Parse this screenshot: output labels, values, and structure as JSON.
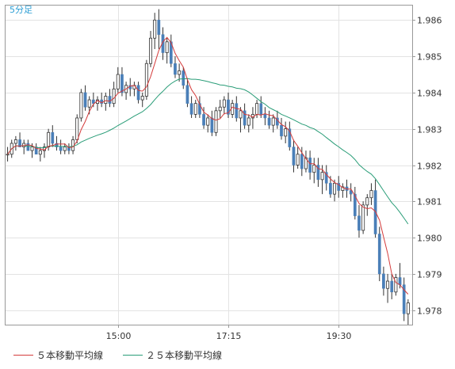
{
  "chart_data": {
    "type": "candlestick",
    "timeframe_label": "5分足",
    "y_axis": {
      "min": 1.9776,
      "max": 1.9864,
      "ticks": [
        "1.986",
        "1.985",
        "1.984",
        "1.983",
        "1.982",
        "1.981",
        "1.980",
        "1.979",
        "1.978"
      ],
      "position": "right"
    },
    "x_axis": {
      "ticks": [
        {
          "label": "15:00",
          "index": 27
        },
        {
          "label": "17:15",
          "index": 54
        },
        {
          "label": "19:30",
          "index": 81
        }
      ]
    },
    "grid": true,
    "legend": {
      "placement": "bottom-left",
      "items": [
        {
          "label": "５本移動平均線",
          "color": "#d43c3c"
        },
        {
          "label": "２５本移動平均線",
          "color": "#2a9d78"
        }
      ]
    },
    "colors": {
      "up": "#ffffff",
      "down": "#4a7fb8",
      "ma5": "#d43c3c",
      "ma25": "#2a9d78",
      "wick": "#333333"
    },
    "candles": [
      [
        1.9823,
        1.9825,
        1.9821,
        1.9823
      ],
      [
        1.9823,
        1.9827,
        1.9822,
        1.9826
      ],
      [
        1.9826,
        1.9828,
        1.9824,
        1.9827
      ],
      [
        1.9827,
        1.9829,
        1.9825,
        1.9825
      ],
      [
        1.9825,
        1.9827,
        1.9823,
        1.9826
      ],
      [
        1.9826,
        1.9827,
        1.9824,
        1.9824
      ],
      [
        1.9824,
        1.9826,
        1.9822,
        1.9825
      ],
      [
        1.9825,
        1.9826,
        1.9823,
        1.9823
      ],
      [
        1.9823,
        1.9825,
        1.9821,
        1.9824
      ],
      [
        1.9824,
        1.9826,
        1.9822,
        1.9825
      ],
      [
        1.9825,
        1.983,
        1.9824,
        1.9829
      ],
      [
        1.9829,
        1.9831,
        1.9825,
        1.9826
      ],
      [
        1.9826,
        1.9828,
        1.9824,
        1.9825
      ],
      [
        1.9825,
        1.9827,
        1.9823,
        1.9824
      ],
      [
        1.9824,
        1.9826,
        1.9823,
        1.9825
      ],
      [
        1.9825,
        1.9826,
        1.9823,
        1.9824
      ],
      [
        1.9824,
        1.9828,
        1.9823,
        1.9827
      ],
      [
        1.9827,
        1.9834,
        1.9826,
        1.9833
      ],
      [
        1.9833,
        1.9841,
        1.9832,
        1.984
      ],
      [
        1.984,
        1.9842,
        1.9835,
        1.9836
      ],
      [
        1.9836,
        1.9839,
        1.9834,
        1.9838
      ],
      [
        1.9838,
        1.984,
        1.9836,
        1.9837
      ],
      [
        1.9837,
        1.9839,
        1.9835,
        1.9838
      ],
      [
        1.9838,
        1.984,
        1.9836,
        1.9837
      ],
      [
        1.9837,
        1.984,
        1.9835,
        1.9839
      ],
      [
        1.9839,
        1.9841,
        1.9836,
        1.9837
      ],
      [
        1.9837,
        1.9843,
        1.9836,
        1.9841
      ],
      [
        1.9841,
        1.9847,
        1.984,
        1.9845
      ],
      [
        1.9845,
        1.9847,
        1.9839,
        1.984
      ],
      [
        1.984,
        1.9843,
        1.9838,
        1.9842
      ],
      [
        1.9842,
        1.9844,
        1.9839,
        1.9841
      ],
      [
        1.9841,
        1.9843,
        1.9839,
        1.9842
      ],
      [
        1.9842,
        1.9843,
        1.9837,
        1.9838
      ],
      [
        1.9838,
        1.984,
        1.9836,
        1.9839
      ],
      [
        1.9839,
        1.9849,
        1.9838,
        1.9848
      ],
      [
        1.9848,
        1.9857,
        1.9847,
        1.9855
      ],
      [
        1.9855,
        1.9862,
        1.9852,
        1.986
      ],
      [
        1.986,
        1.9863,
        1.9852,
        1.9856
      ],
      [
        1.9856,
        1.9858,
        1.9849,
        1.9851
      ],
      [
        1.9851,
        1.9855,
        1.9848,
        1.9854
      ],
      [
        1.9854,
        1.9856,
        1.9847,
        1.9848
      ],
      [
        1.9848,
        1.985,
        1.9844,
        1.9845
      ],
      [
        1.9845,
        1.9848,
        1.9843,
        1.9846
      ],
      [
        1.9846,
        1.9847,
        1.9841,
        1.9842
      ],
      [
        1.9842,
        1.9844,
        1.9836,
        1.9837
      ],
      [
        1.9837,
        1.9839,
        1.9833,
        1.9834
      ],
      [
        1.9834,
        1.9838,
        1.9833,
        1.9837
      ],
      [
        1.9837,
        1.9839,
        1.9833,
        1.9834
      ],
      [
        1.9834,
        1.9836,
        1.983,
        1.9831
      ],
      [
        1.9831,
        1.9834,
        1.9829,
        1.9833
      ],
      [
        1.9833,
        1.9835,
        1.9828,
        1.9829
      ],
      [
        1.9829,
        1.9836,
        1.9828,
        1.9835
      ],
      [
        1.9835,
        1.9838,
        1.9833,
        1.9836
      ],
      [
        1.9836,
        1.9839,
        1.9834,
        1.9838
      ],
      [
        1.9838,
        1.984,
        1.9833,
        1.9834
      ],
      [
        1.9834,
        1.9838,
        1.9833,
        1.9837
      ],
      [
        1.9837,
        1.9839,
        1.9832,
        1.9833
      ],
      [
        1.9833,
        1.9836,
        1.9829,
        1.9835
      ],
      [
        1.9835,
        1.9837,
        1.983,
        1.9831
      ],
      [
        1.9831,
        1.9834,
        1.9829,
        1.9833
      ],
      [
        1.9833,
        1.9836,
        1.983,
        1.9834
      ],
      [
        1.9834,
        1.9838,
        1.9833,
        1.9837
      ],
      [
        1.9837,
        1.9839,
        1.9833,
        1.9834
      ],
      [
        1.9834,
        1.9836,
        1.9831,
        1.9833
      ],
      [
        1.9833,
        1.9835,
        1.983,
        1.9831
      ],
      [
        1.9831,
        1.9834,
        1.9829,
        1.9833
      ],
      [
        1.9833,
        1.9835,
        1.983,
        1.9831
      ],
      [
        1.9831,
        1.9833,
        1.9827,
        1.9828
      ],
      [
        1.9828,
        1.9832,
        1.9826,
        1.983
      ],
      [
        1.983,
        1.9832,
        1.9824,
        1.9825
      ],
      [
        1.9825,
        1.9827,
        1.9818,
        1.982
      ],
      [
        1.982,
        1.9825,
        1.9819,
        1.9823
      ],
      [
        1.9823,
        1.9825,
        1.9817,
        1.9819
      ],
      [
        1.9819,
        1.9824,
        1.9818,
        1.9822
      ],
      [
        1.9822,
        1.9824,
        1.9816,
        1.9818
      ],
      [
        1.9818,
        1.9822,
        1.9815,
        1.982
      ],
      [
        1.982,
        1.9822,
        1.9814,
        1.9816
      ],
      [
        1.9816,
        1.982,
        1.9812,
        1.9818
      ],
      [
        1.9818,
        1.982,
        1.9813,
        1.9815
      ],
      [
        1.9815,
        1.9817,
        1.9811,
        1.9812
      ],
      [
        1.9812,
        1.9816,
        1.981,
        1.9815
      ],
      [
        1.9815,
        1.9817,
        1.9811,
        1.9813
      ],
      [
        1.9813,
        1.9815,
        1.9811,
        1.9814
      ],
      [
        1.9814,
        1.9816,
        1.9811,
        1.9813
      ],
      [
        1.9813,
        1.9815,
        1.981,
        1.9812
      ],
      [
        1.9812,
        1.9814,
        1.9805,
        1.9806
      ],
      [
        1.9806,
        1.9809,
        1.98,
        1.9802
      ],
      [
        1.9802,
        1.981,
        1.9801,
        1.9809
      ],
      [
        1.9809,
        1.9812,
        1.9806,
        1.9811
      ],
      [
        1.9811,
        1.9815,
        1.9809,
        1.9813
      ],
      [
        1.9813,
        1.9816,
        1.98,
        1.9801
      ],
      [
        1.9801,
        1.9803,
        1.9788,
        1.979
      ],
      [
        1.979,
        1.9792,
        1.9784,
        1.9786
      ],
      [
        1.9786,
        1.979,
        1.9782,
        1.9788
      ],
      [
        1.9788,
        1.979,
        1.9783,
        1.9785
      ],
      [
        1.9785,
        1.979,
        1.9784,
        1.9789
      ],
      [
        1.9789,
        1.9793,
        1.9786,
        1.9787
      ],
      [
        1.9787,
        1.9789,
        1.9777,
        1.9779
      ],
      [
        1.9779,
        1.9783,
        1.9776,
        1.9782
      ]
    ]
  }
}
